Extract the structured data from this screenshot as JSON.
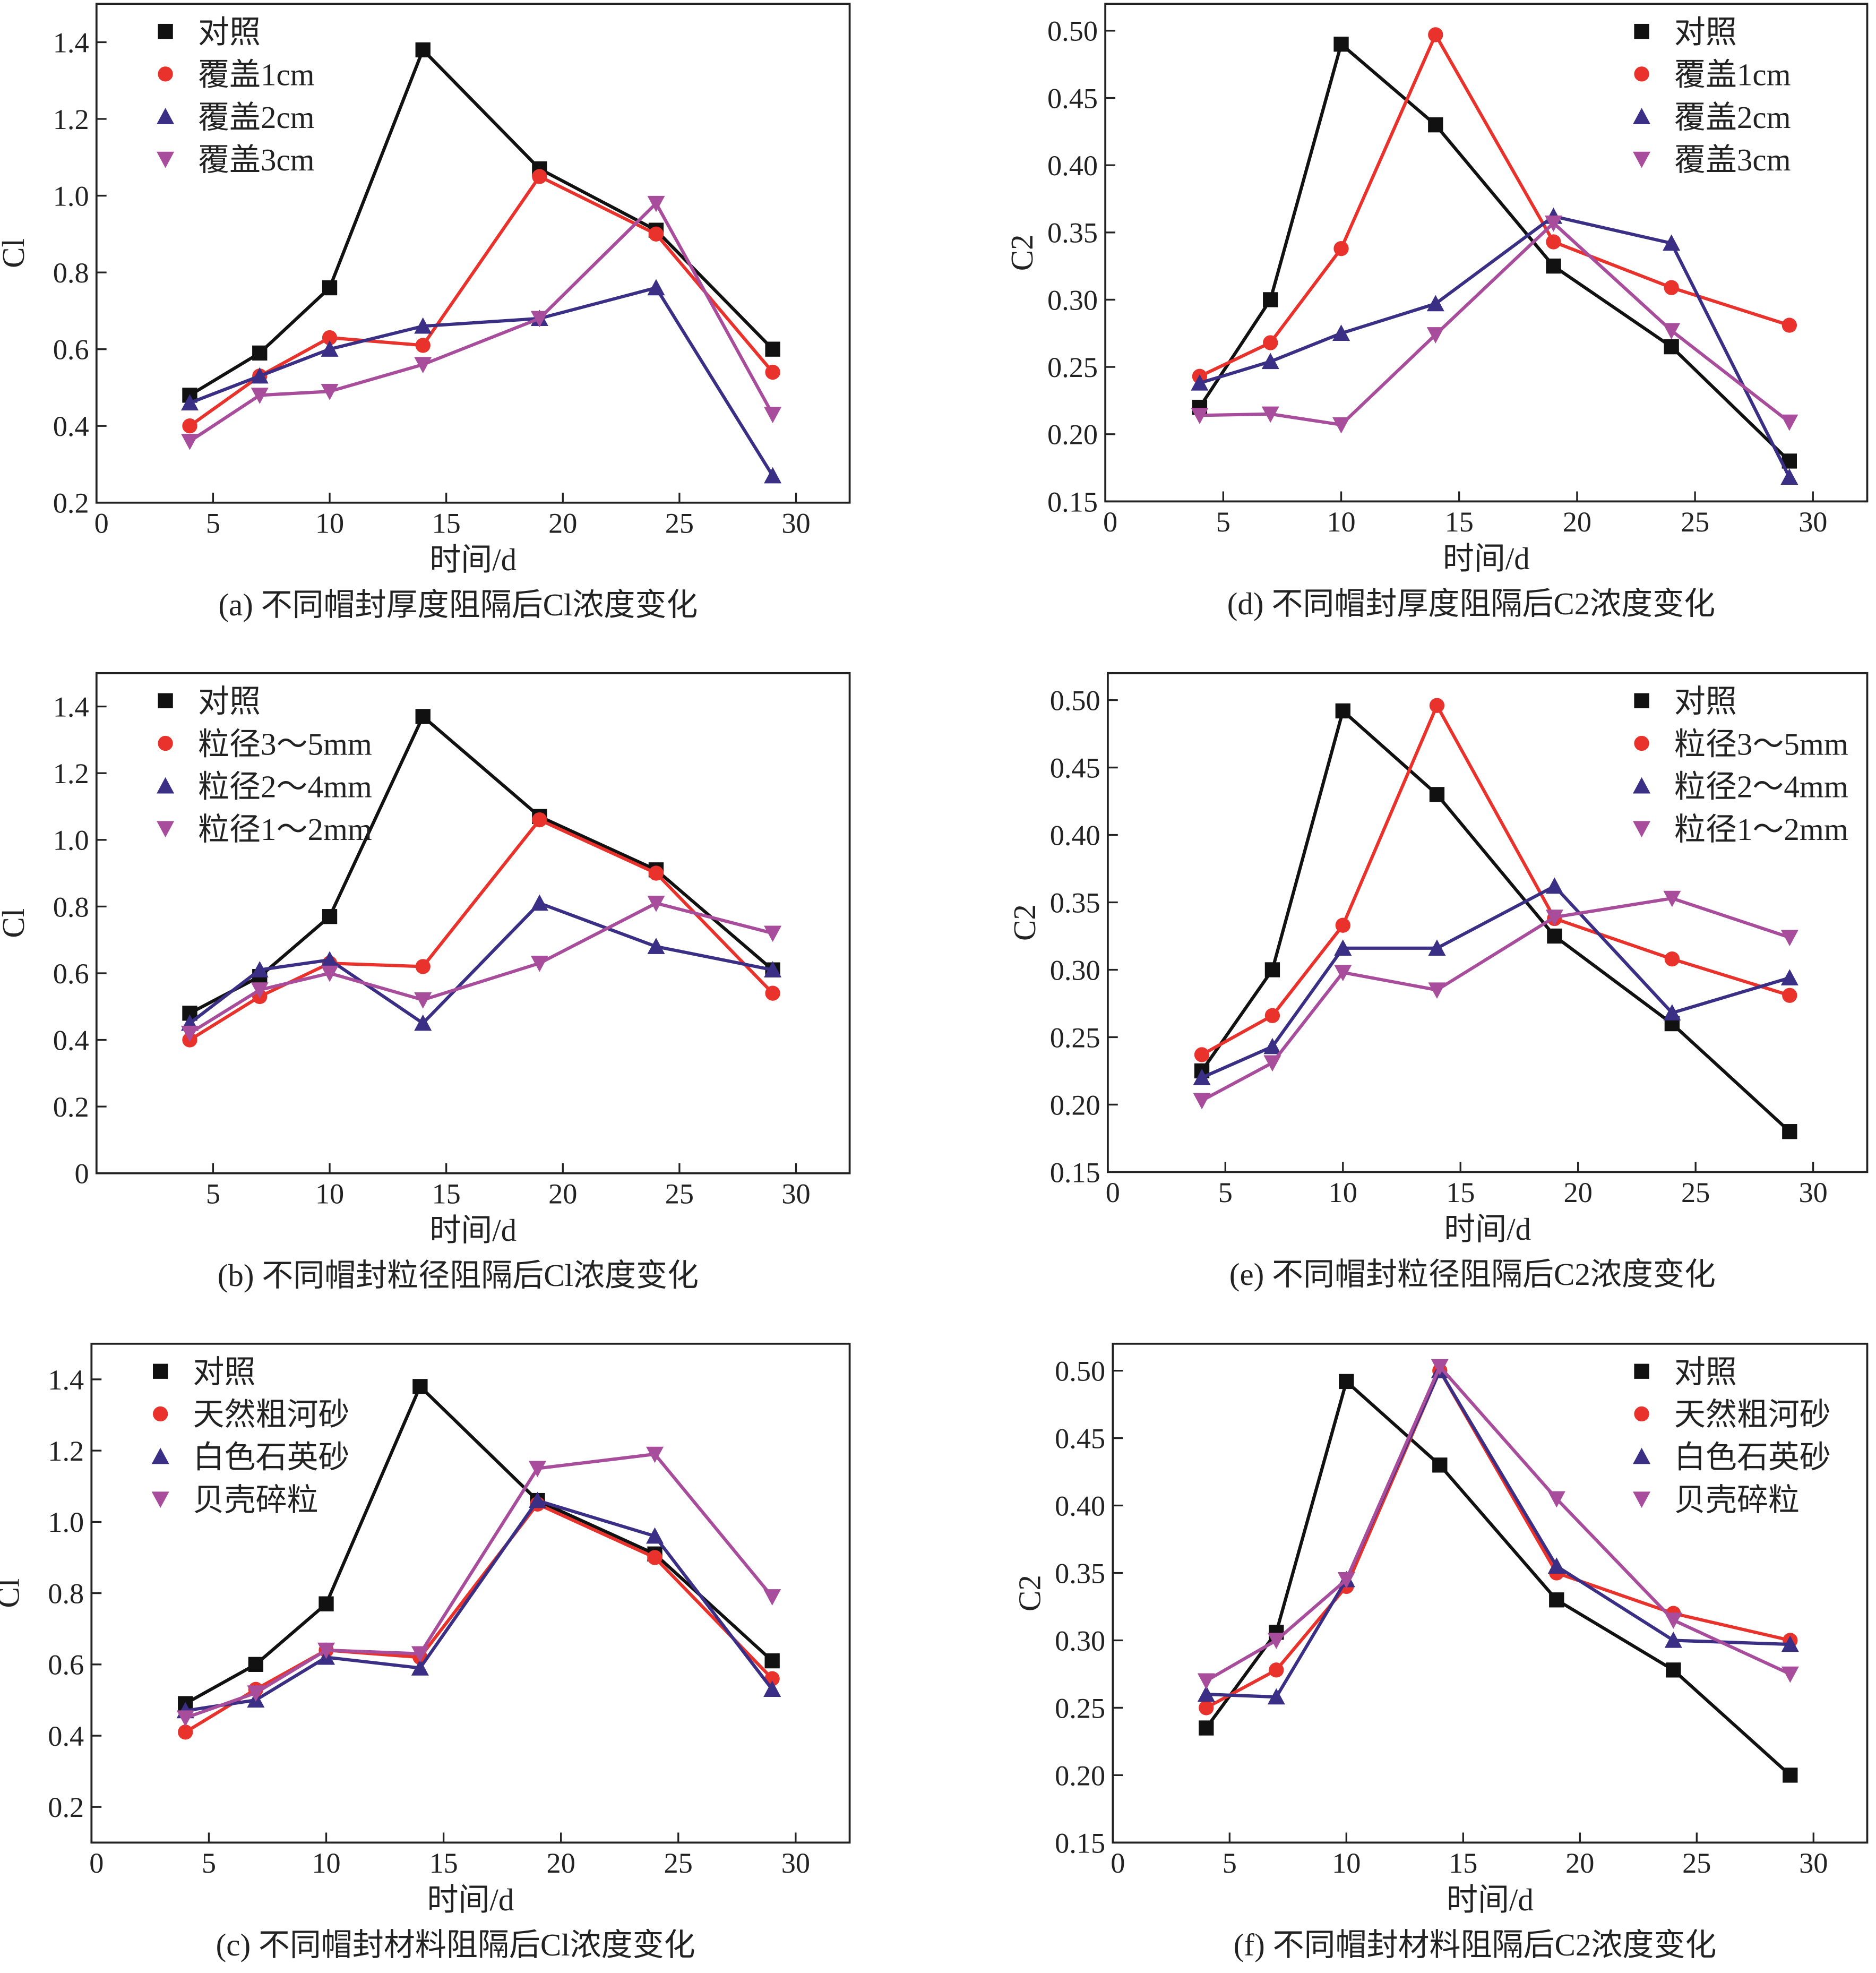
{
  "colors": {
    "control": "#111111",
    "s1": "#e8322b",
    "s2": "#3a2f85",
    "s3": "#a84c9c"
  },
  "chart_data": [
    {
      "id": "a",
      "type": "line",
      "title": "(a) 不同帽封厚度阻隔后Cl浓度变化",
      "xlabel": "时间/d",
      "ylabel": "Cl",
      "xlim": [
        0,
        32.3
      ],
      "ylim": [
        0.2,
        1.5
      ],
      "xticks": [
        0,
        5,
        10,
        15,
        20,
        25,
        30
      ],
      "yticks": [
        0.2,
        0.4,
        0.6,
        0.8,
        1.0,
        1.2,
        1.4
      ],
      "ydecimals": 1,
      "legend": "top-left",
      "x": [
        4,
        7,
        10,
        14,
        19,
        24,
        29
      ],
      "series": [
        {
          "name": "对照",
          "marker": "square",
          "values": [
            0.48,
            0.59,
            0.76,
            1.38,
            1.07,
            0.91,
            0.6
          ]
        },
        {
          "name": "覆盖1cm",
          "marker": "circle",
          "values": [
            0.4,
            0.53,
            0.63,
            0.61,
            1.05,
            0.9,
            0.54
          ]
        },
        {
          "name": "覆盖2cm",
          "marker": "triangle-up",
          "values": [
            0.46,
            0.53,
            0.6,
            0.66,
            0.68,
            0.76,
            0.27
          ]
        },
        {
          "name": "覆盖3cm",
          "marker": "triangle-down",
          "values": [
            0.36,
            0.48,
            0.49,
            0.56,
            0.68,
            0.98,
            0.43
          ]
        }
      ]
    },
    {
      "id": "d",
      "type": "line",
      "title": "(d) 不同帽封厚度阻隔后C2浓度变化",
      "xlabel": "时间/d",
      "ylabel": "C2",
      "xlim": [
        0,
        32.3
      ],
      "ylim": [
        0.15,
        0.52
      ],
      "xticks": [
        0,
        5,
        10,
        15,
        20,
        25,
        30
      ],
      "yticks": [
        0.15,
        0.2,
        0.25,
        0.3,
        0.35,
        0.4,
        0.45,
        0.5
      ],
      "ydecimals": 2,
      "legend": "top-right",
      "x": [
        4,
        7,
        10,
        14,
        19,
        24,
        29
      ],
      "series": [
        {
          "name": "对照",
          "marker": "square",
          "values": [
            0.22,
            0.3,
            0.49,
            0.43,
            0.325,
            0.265,
            0.18
          ]
        },
        {
          "name": "覆盖1cm",
          "marker": "circle",
          "values": [
            0.243,
            0.268,
            0.338,
            0.497,
            0.343,
            0.309,
            0.281
          ]
        },
        {
          "name": "覆盖2cm",
          "marker": "triangle-up",
          "values": [
            0.238,
            0.254,
            0.275,
            0.297,
            0.362,
            0.342,
            0.168
          ]
        },
        {
          "name": "覆盖3cm",
          "marker": "triangle-down",
          "values": [
            0.214,
            0.215,
            0.207,
            0.274,
            0.357,
            0.277,
            0.209
          ]
        }
      ]
    },
    {
      "id": "b",
      "type": "line",
      "title": "(b) 不同帽封粒径阻隔后Cl浓度变化",
      "xlabel": "时间/d",
      "ylabel": "Cl",
      "xlim": [
        0,
        32.3
      ],
      "ylim": [
        0,
        1.5
      ],
      "xticks": [
        5,
        10,
        15,
        20,
        25,
        30
      ],
      "yticks": [
        0,
        0.2,
        0.4,
        0.6,
        0.8,
        1.0,
        1.2,
        1.4
      ],
      "ydecimals": 1,
      "legend": "top-left",
      "x": [
        4,
        7,
        10,
        14,
        19,
        24,
        29
      ],
      "series": [
        {
          "name": "对照",
          "marker": "square",
          "values": [
            0.48,
            0.59,
            0.77,
            1.37,
            1.07,
            0.91,
            0.61
          ]
        },
        {
          "name": "粒径3～5mm",
          "marker": "circle",
          "values": [
            0.4,
            0.53,
            0.63,
            0.62,
            1.06,
            0.9,
            0.54
          ]
        },
        {
          "name": "粒径2～4mm",
          "marker": "triangle-up",
          "values": [
            0.45,
            0.61,
            0.64,
            0.45,
            0.81,
            0.68,
            0.61
          ]
        },
        {
          "name": "粒径1～2mm",
          "marker": "triangle-down",
          "values": [
            0.42,
            0.55,
            0.6,
            0.52,
            0.63,
            0.81,
            0.72
          ]
        }
      ]
    },
    {
      "id": "e",
      "type": "line",
      "title": "(e) 不同帽封粒径阻隔后C2浓度变化",
      "xlabel": "时间/d",
      "ylabel": "C2",
      "xlim": [
        0,
        32.3
      ],
      "ylim": [
        0.15,
        0.52
      ],
      "xticks": [
        0,
        5,
        10,
        15,
        20,
        25,
        30
      ],
      "yticks": [
        0.15,
        0.2,
        0.25,
        0.3,
        0.35,
        0.4,
        0.45,
        0.5
      ],
      "ydecimals": 2,
      "legend": "top-right",
      "x": [
        4,
        7,
        10,
        14,
        19,
        24,
        29
      ],
      "series": [
        {
          "name": "对照",
          "marker": "square",
          "values": [
            0.225,
            0.3,
            0.492,
            0.43,
            0.325,
            0.26,
            0.18
          ]
        },
        {
          "name": "粒径3～5mm",
          "marker": "circle",
          "values": [
            0.237,
            0.266,
            0.333,
            0.496,
            0.338,
            0.308,
            0.281
          ]
        },
        {
          "name": "粒径2～4mm",
          "marker": "triangle-up",
          "values": [
            0.22,
            0.243,
            0.316,
            0.316,
            0.362,
            0.268,
            0.294
          ]
        },
        {
          "name": "粒径1～2mm",
          "marker": "triangle-down",
          "values": [
            0.203,
            0.231,
            0.298,
            0.285,
            0.339,
            0.353,
            0.324
          ]
        }
      ]
    },
    {
      "id": "c",
      "type": "line",
      "title": "(c) 不同帽封材料阻隔后Cl浓度变化",
      "xlabel": "时间/d",
      "ylabel": "Cl",
      "xlim": [
        0,
        32.3
      ],
      "ylim": [
        0.1,
        1.5
      ],
      "xticks": [
        0,
        5,
        10,
        15,
        20,
        25,
        30
      ],
      "yticks": [
        0.2,
        0.4,
        0.6,
        0.8,
        1.0,
        1.2,
        1.4
      ],
      "ydecimals": 1,
      "legend": "top-left",
      "x": [
        4,
        7,
        10,
        14,
        19,
        24,
        29
      ],
      "series": [
        {
          "name": "对照",
          "marker": "square",
          "values": [
            0.49,
            0.6,
            0.77,
            1.38,
            1.06,
            0.91,
            0.61
          ]
        },
        {
          "name": "天然粗河砂",
          "marker": "circle",
          "values": [
            0.41,
            0.53,
            0.64,
            0.62,
            1.05,
            0.9,
            0.56
          ]
        },
        {
          "name": "白色石英砂",
          "marker": "triangle-up",
          "values": [
            0.47,
            0.5,
            0.62,
            0.59,
            1.06,
            0.96,
            0.53
          ]
        },
        {
          "name": "贝壳碎粒",
          "marker": "triangle-down",
          "values": [
            0.45,
            0.52,
            0.64,
            0.63,
            1.15,
            1.19,
            0.79
          ]
        }
      ]
    },
    {
      "id": "f",
      "type": "line",
      "title": "(f) 不同帽封材料阻隔后C2浓度变化",
      "xlabel": "时间/d",
      "ylabel": "C2",
      "xlim": [
        0,
        32.3
      ],
      "ylim": [
        0.15,
        0.52
      ],
      "xticks": [
        0,
        5,
        10,
        15,
        20,
        25,
        30
      ],
      "yticks": [
        0.15,
        0.2,
        0.25,
        0.3,
        0.35,
        0.4,
        0.45,
        0.5
      ],
      "ydecimals": 2,
      "legend": "top-right",
      "x": [
        4,
        7,
        10,
        14,
        19,
        24,
        29
      ],
      "series": [
        {
          "name": "对照",
          "marker": "square",
          "values": [
            0.235,
            0.306,
            0.492,
            0.43,
            0.33,
            0.278,
            0.2
          ]
        },
        {
          "name": "天然粗河砂",
          "marker": "circle",
          "values": [
            0.25,
            0.278,
            0.34,
            0.5,
            0.35,
            0.32,
            0.3
          ]
        },
        {
          "name": "白色石英砂",
          "marker": "triangle-up",
          "values": [
            0.26,
            0.258,
            0.345,
            0.5,
            0.355,
            0.3,
            0.297
          ]
        },
        {
          "name": "贝壳碎粒",
          "marker": "triangle-down",
          "values": [
            0.27,
            0.3,
            0.345,
            0.503,
            0.405,
            0.315,
            0.275
          ]
        }
      ]
    }
  ]
}
